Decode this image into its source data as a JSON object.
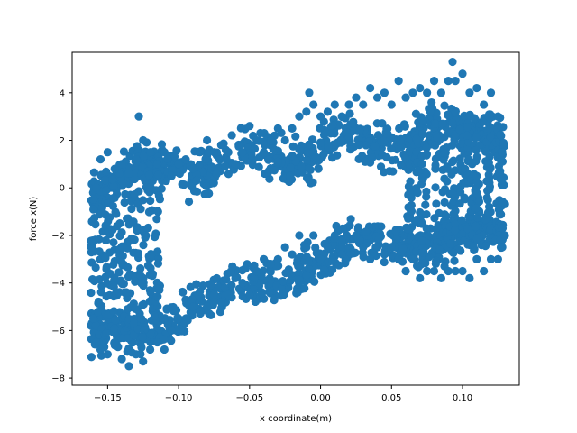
{
  "chart_data": {
    "type": "scatter",
    "title": "",
    "xlabel": "x coordinate(m)",
    "ylabel": "force x(N)",
    "xlim": [
      -0.175,
      0.14
    ],
    "ylim": [
      -8.3,
      5.7
    ],
    "xticks": [
      -0.15,
      -0.1,
      -0.05,
      0.0,
      0.05,
      0.1
    ],
    "xtick_labels": [
      "−0.15",
      "−0.10",
      "−0.05",
      "0.00",
      "0.05",
      "0.10"
    ],
    "yticks": [
      -8,
      -6,
      -4,
      -2,
      0,
      2,
      4
    ],
    "ytick_labels": [
      "−8",
      "−6",
      "−4",
      "−2",
      "0",
      "2",
      "4"
    ],
    "grid": false,
    "legend": "none",
    "color": "#1f77b4",
    "series": [
      {
        "description_points": [
          [
            -0.16,
            -0.5
          ],
          [
            -0.16,
            -5.5
          ],
          [
            -0.158,
            0.0
          ],
          [
            -0.158,
            -6.5
          ],
          [
            -0.155,
            1.2
          ],
          [
            -0.155,
            -6.8
          ],
          [
            -0.15,
            1.5
          ],
          [
            -0.15,
            -7.0
          ],
          [
            -0.145,
            0.8
          ],
          [
            -0.145,
            -6.5
          ],
          [
            -0.14,
            1.0
          ],
          [
            -0.14,
            -7.2
          ],
          [
            -0.135,
            0.6
          ],
          [
            -0.135,
            -7.5
          ],
          [
            -0.13,
            1.2
          ],
          [
            -0.13,
            -7.0
          ],
          [
            -0.128,
            3.0
          ],
          [
            -0.125,
            2.0
          ],
          [
            -0.125,
            -7.3
          ],
          [
            -0.12,
            1.5
          ],
          [
            -0.12,
            -6.8
          ],
          [
            -0.115,
            1.0
          ],
          [
            -0.115,
            -6.5
          ],
          [
            -0.11,
            1.5
          ],
          [
            -0.11,
            -6.8
          ],
          [
            -0.105,
            0.5
          ],
          [
            -0.105,
            -6.0
          ],
          [
            -0.1,
            1.0
          ],
          [
            -0.1,
            -5.5
          ],
          [
            -0.095,
            1.2
          ],
          [
            -0.095,
            -5.5
          ],
          [
            -0.09,
            0.8
          ],
          [
            -0.09,
            -5.0
          ],
          [
            -0.085,
            1.5
          ],
          [
            -0.085,
            -5.2
          ],
          [
            -0.08,
            2.0
          ],
          [
            -0.08,
            -5.0
          ],
          [
            -0.075,
            1.5
          ],
          [
            -0.075,
            -4.5
          ],
          [
            -0.07,
            1.8
          ],
          [
            -0.07,
            -4.8
          ],
          [
            -0.065,
            1.5
          ],
          [
            -0.065,
            -4.5
          ],
          [
            -0.06,
            1.0
          ],
          [
            -0.06,
            -3.8
          ],
          [
            -0.055,
            1.5
          ],
          [
            -0.055,
            -4.0
          ],
          [
            -0.05,
            2.6
          ],
          [
            -0.05,
            -4.5
          ],
          [
            -0.045,
            2.0
          ],
          [
            -0.045,
            -3.5
          ],
          [
            -0.04,
            1.5
          ],
          [
            -0.04,
            -3.0
          ],
          [
            -0.035,
            2.0
          ],
          [
            -0.035,
            -3.2
          ],
          [
            -0.03,
            2.5
          ],
          [
            -0.03,
            -3.0
          ],
          [
            -0.025,
            2.0
          ],
          [
            -0.025,
            -2.5
          ],
          [
            -0.02,
            2.5
          ],
          [
            -0.02,
            -2.8
          ],
          [
            -0.015,
            3.0
          ],
          [
            -0.015,
            -2.0
          ],
          [
            -0.01,
            3.2
          ],
          [
            -0.01,
            -2.5
          ],
          [
            -0.008,
            4.0
          ],
          [
            -0.005,
            3.5
          ],
          [
            -0.005,
            -2.0
          ],
          [
            0.0,
            3.0
          ],
          [
            0.0,
            -3.0
          ],
          [
            0.005,
            3.2
          ],
          [
            0.005,
            -2.5
          ],
          [
            0.01,
            3.5
          ],
          [
            0.01,
            -2.0
          ],
          [
            0.015,
            3.0
          ],
          [
            0.015,
            -2.8
          ],
          [
            0.02,
            3.5
          ],
          [
            0.02,
            -2.5
          ],
          [
            0.025,
            3.8
          ],
          [
            0.025,
            -2.0
          ],
          [
            0.03,
            3.5
          ],
          [
            0.03,
            -2.5
          ],
          [
            0.035,
            4.2
          ],
          [
            0.035,
            -3.0
          ],
          [
            0.04,
            3.8
          ],
          [
            0.04,
            -2.5
          ],
          [
            0.045,
            4.0
          ],
          [
            0.045,
            -2.8
          ],
          [
            0.05,
            3.5
          ],
          [
            0.05,
            -2.5
          ],
          [
            0.055,
            4.5
          ],
          [
            0.055,
            -3.0
          ],
          [
            0.06,
            3.8
          ],
          [
            0.06,
            -3.5
          ],
          [
            0.065,
            4.0
          ],
          [
            0.065,
            -3.0
          ],
          [
            0.07,
            4.2
          ],
          [
            0.07,
            -3.8
          ],
          [
            0.075,
            4.0
          ],
          [
            0.075,
            -3.5
          ],
          [
            0.08,
            4.5
          ],
          [
            0.08,
            -3.5
          ],
          [
            0.085,
            4.0
          ],
          [
            0.085,
            -3.8
          ],
          [
            0.09,
            4.5
          ],
          [
            0.09,
            -3.5
          ],
          [
            0.093,
            5.3
          ],
          [
            0.095,
            4.5
          ],
          [
            0.095,
            -3.5
          ],
          [
            0.1,
            4.8
          ],
          [
            0.1,
            -3.5
          ],
          [
            0.105,
            4.0
          ],
          [
            0.105,
            -3.8
          ],
          [
            0.11,
            4.2
          ],
          [
            0.11,
            -3.0
          ],
          [
            0.115,
            3.5
          ],
          [
            0.115,
            -3.5
          ],
          [
            0.12,
            4.0
          ],
          [
            0.12,
            -3.0
          ],
          [
            0.125,
            3.0
          ],
          [
            0.125,
            -3.0
          ],
          [
            0.128,
            1.5
          ],
          [
            0.128,
            -2.5
          ]
        ]
      }
    ]
  }
}
